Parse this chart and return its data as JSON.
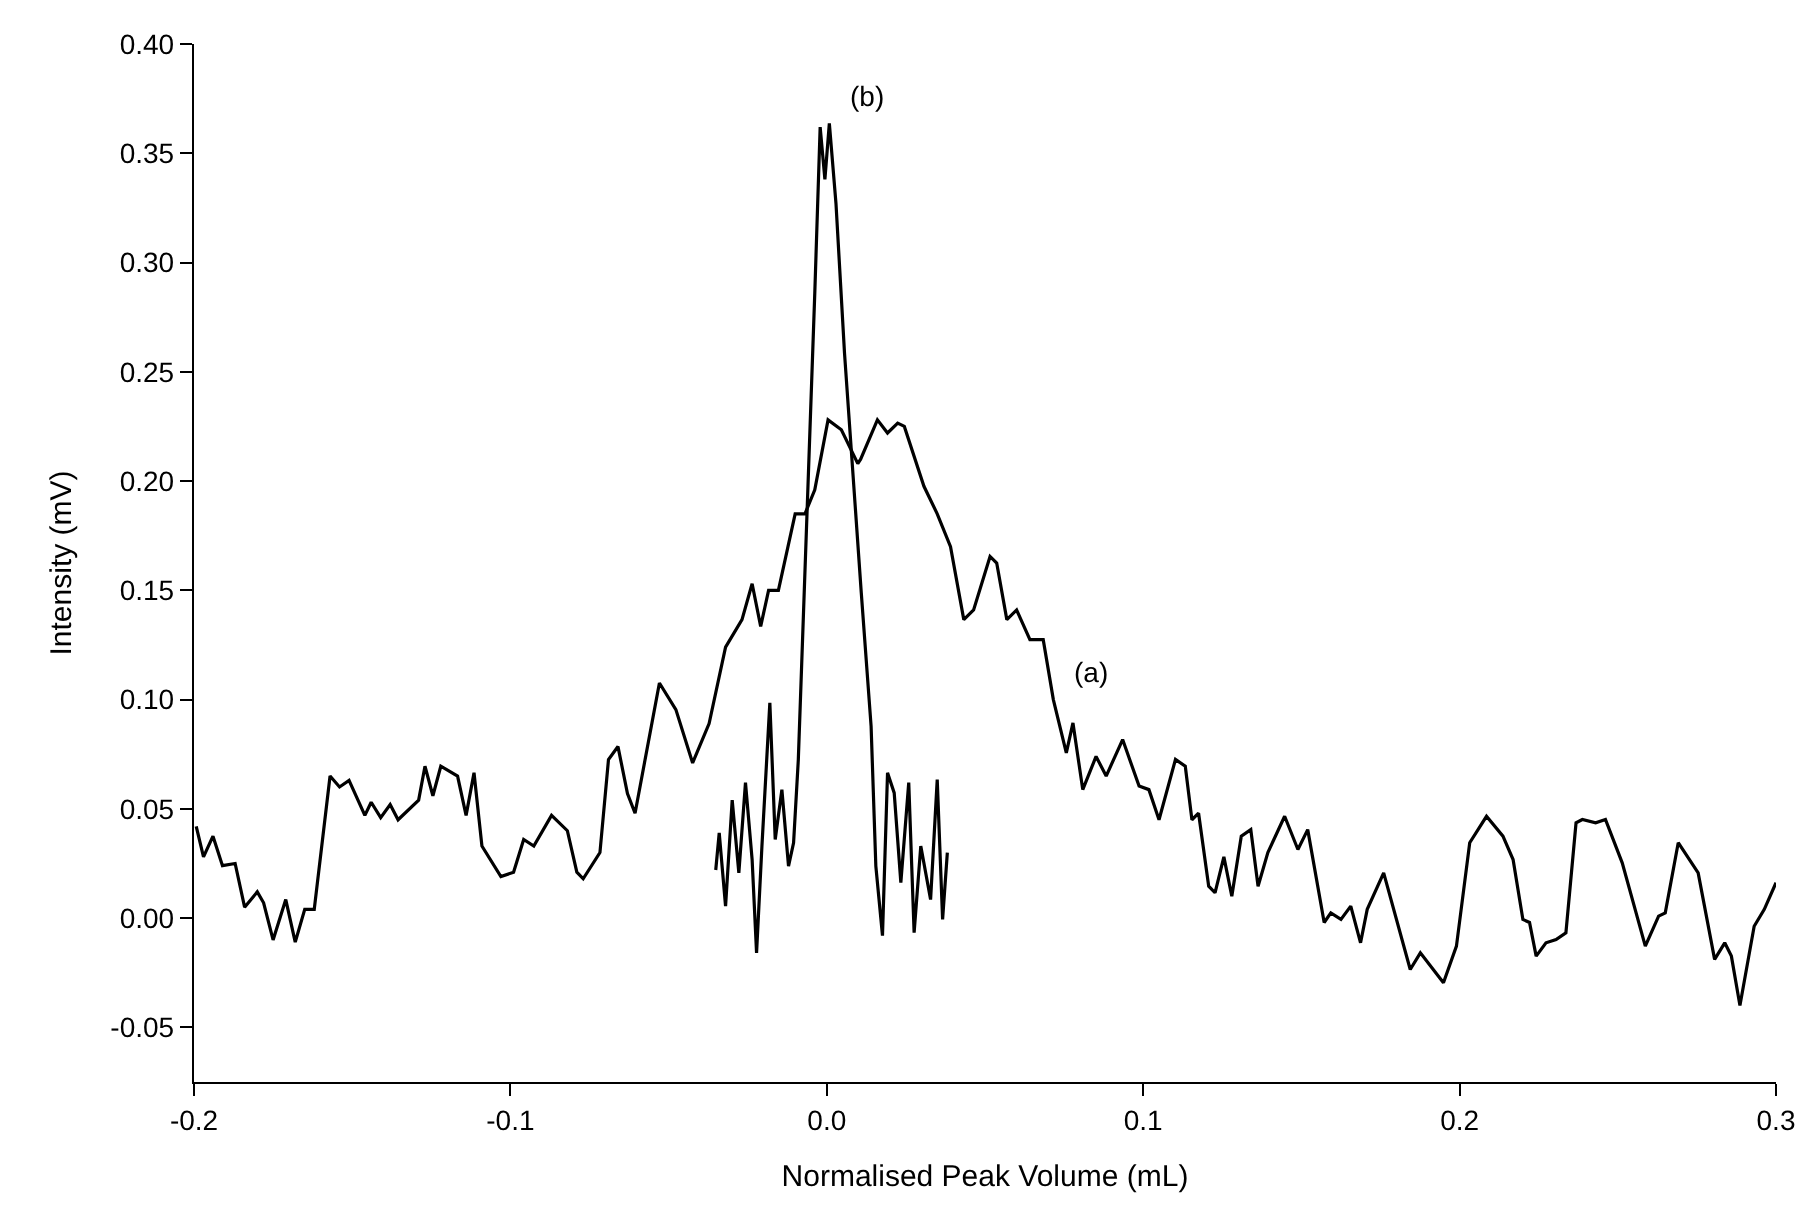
{
  "chart_data": {
    "type": "line",
    "xlabel": "Normalised Peak Volume (mL)",
    "ylabel": "Intensity (mV)",
    "xlim": [
      -0.2,
      0.3
    ],
    "xticks": [
      {
        "value": -0.2,
        "label": "-0.2"
      },
      {
        "value": -0.1,
        "label": "-0.1"
      },
      {
        "value": 0,
        "label": "0.0"
      },
      {
        "value": 0.1,
        "label": "0.1"
      },
      {
        "value": 0.2,
        "label": "0.2"
      },
      {
        "value": 0.3,
        "label": "0.3"
      }
    ],
    "ylim": [
      -0.075,
      0.4
    ],
    "yticks": [
      {
        "value": -0.05,
        "label": "-0.05"
      },
      {
        "value": 0,
        "label": "0.00"
      },
      {
        "value": 0.05,
        "label": "0.05"
      },
      {
        "value": 0.1,
        "label": "0.10"
      },
      {
        "value": 0.15,
        "label": "0.15"
      },
      {
        "value": 0.2,
        "label": "0.20"
      },
      {
        "value": 0.25,
        "label": "0.25"
      },
      {
        "value": 0.3,
        "label": "0.30"
      },
      {
        "value": 0.35,
        "label": "0.35"
      },
      {
        "value": 0.4,
        "label": "0.40"
      }
    ],
    "marker": "none",
    "line_style": "solid",
    "annotations": [
      {
        "text": "(b)",
        "x": 0.0008,
        "y": 0.3637
      },
      {
        "text": "(a)",
        "x": 0.0716,
        "y": 0.1
      }
    ],
    "series": [
      {
        "color": "#000000",
        "x": [
          -0.1993,
          -0.197,
          -0.194,
          -0.191,
          -0.187,
          -0.184,
          -0.18,
          -0.178,
          -0.175,
          -0.171,
          -0.168,
          -0.165,
          -0.162,
          -0.157,
          -0.154,
          -0.151,
          -0.146,
          -0.144,
          -0.141,
          -0.138,
          -0.1355,
          -0.129,
          -0.127,
          -0.1245,
          -0.122,
          -0.1167,
          -0.114,
          -0.1115,
          -0.109,
          -0.103,
          -0.099,
          -0.0958,
          -0.0926,
          -0.087,
          -0.082,
          -0.079,
          -0.077,
          -0.0717,
          -0.069,
          -0.066,
          -0.063,
          -0.0606,
          -0.0529,
          -0.0477,
          -0.0424,
          -0.0372,
          -0.032,
          -0.0268,
          -0.0236,
          -0.0209,
          -0.0184,
          -0.0153,
          -0.01,
          -0.0069,
          -0.0038,
          0.0004,
          0.0046,
          0.0098,
          0.0107,
          0.016,
          0.0192,
          0.0224,
          0.0245,
          0.0307,
          0.0349,
          0.0391,
          0.0433,
          0.0464,
          0.0516,
          0.0537,
          0.0569,
          0.06,
          0.0642,
          0.0684,
          0.0716,
          0.0757,
          0.0778,
          0.0809,
          0.0851,
          0.0883,
          0.0935,
          0.0987,
          0.1018,
          0.105,
          0.1102,
          0.1133,
          0.1154,
          0.1175,
          0.1207,
          0.1227,
          0.1255,
          0.128,
          0.131,
          0.134,
          0.1363,
          0.1394,
          0.1447,
          0.1489,
          0.152,
          0.1572,
          0.1593,
          0.1625,
          0.1656,
          0.1687,
          0.1708,
          0.176,
          0.1844,
          0.1876,
          0.1949,
          0.199,
          0.2032,
          0.2085,
          0.2137,
          0.2169,
          0.22,
          0.2221,
          0.2242,
          0.2273,
          0.2305,
          0.2336,
          0.2368,
          0.2388,
          0.243,
          0.2461,
          0.2514,
          0.2587,
          0.2629,
          0.265,
          0.2691,
          0.2754,
          0.2806,
          0.2838,
          0.2859,
          0.2886,
          0.2931,
          0.2963,
          0.3
        ],
        "values": [
          0.042,
          0.028,
          0.0375,
          0.024,
          0.025,
          0.005,
          0.012,
          0.007,
          -0.01,
          0.0085,
          -0.011,
          0.004,
          0.004,
          0.065,
          0.06,
          0.063,
          0.047,
          0.053,
          0.046,
          0.052,
          0.045,
          0.054,
          0.0695,
          0.056,
          0.0695,
          0.065,
          0.047,
          0.0665,
          0.033,
          0.019,
          0.021,
          0.036,
          0.033,
          0.047,
          0.04,
          0.021,
          0.018,
          0.03,
          0.0725,
          0.0785,
          0.057,
          0.048,
          0.1076,
          0.0954,
          0.071,
          0.089,
          0.124,
          0.1366,
          0.153,
          0.1335,
          0.15,
          0.15,
          0.185,
          0.185,
          0.196,
          0.228,
          0.2235,
          0.208,
          0.21,
          0.228,
          0.222,
          0.2265,
          0.225,
          0.1976,
          0.185,
          0.17,
          0.1366,
          0.141,
          0.1655,
          0.1625,
          0.1366,
          0.141,
          0.1274,
          0.1274,
          0.1,
          0.0756,
          0.0893,
          0.0588,
          0.074,
          0.065,
          0.0817,
          0.0604,
          0.0588,
          0.045,
          0.0726,
          0.0695,
          0.045,
          0.048,
          0.0146,
          0.0116,
          0.028,
          0.01,
          0.0375,
          0.0405,
          0.0146,
          0.03,
          0.0466,
          0.0314,
          0.0405,
          -0.002,
          0.0024,
          -0.0006,
          0.0055,
          -0.0113,
          0.004,
          0.0207,
          -0.0235,
          -0.0159,
          -0.0296,
          -0.0128,
          0.0345,
          0.0466,
          0.0375,
          0.0268,
          -0.0006,
          -0.002,
          -0.0174,
          -0.0113,
          -0.0098,
          -0.0067,
          0.0436,
          0.0451,
          0.0436,
          0.0451,
          0.0253,
          -0.0128,
          0.0009,
          0.0024,
          0.0345,
          0.0207,
          -0.0189,
          -0.0113,
          -0.0174,
          -0.04,
          -0.0037,
          0.004,
          0.0162
        ]
      },
      {
        "color": "#000000",
        "x": [
          -0.0351,
          -0.034,
          -0.032,
          -0.0299,
          -0.0278,
          -0.0257,
          -0.0236,
          -0.0222,
          -0.0205,
          -0.018,
          -0.0163,
          -0.0142,
          -0.0121,
          -0.0105,
          -0.009,
          -0.0038,
          -0.0021,
          -0.0006,
          0.0008,
          0.0029,
          0.0056,
          0.0109,
          0.014,
          0.0155,
          0.0176,
          0.0192,
          0.0213,
          0.0234,
          0.0259,
          0.0276,
          0.0297,
          0.0328,
          0.0349,
          0.0366,
          0.0381
        ],
        "values": [
          0.022,
          0.039,
          0.0055,
          0.054,
          0.0207,
          0.062,
          0.0268,
          -0.0159,
          0.033,
          0.0985,
          0.036,
          0.0588,
          0.0238,
          0.0345,
          0.0725,
          0.286,
          0.362,
          0.338,
          0.3637,
          0.327,
          0.2585,
          0.1488,
          0.0878,
          0.0238,
          -0.008,
          0.0665,
          0.0573,
          0.0162,
          0.062,
          -0.0067,
          0.033,
          0.0085,
          0.0634,
          -0.0006,
          0.03
        ]
      }
    ]
  }
}
